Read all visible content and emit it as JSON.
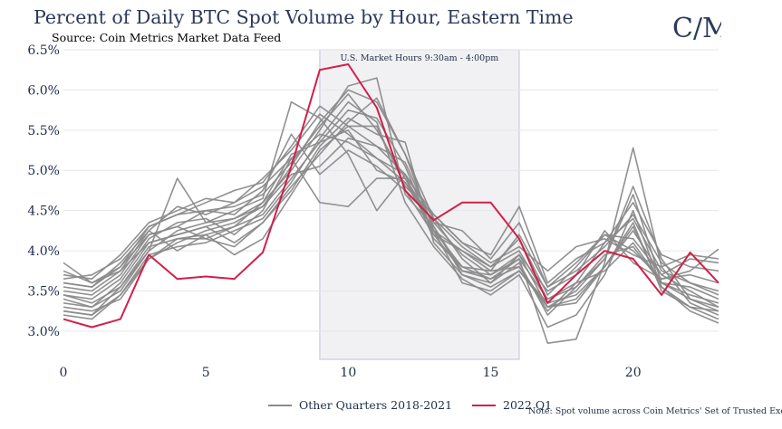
{
  "title": "Percent of Daily BTC Spot Volume by Hour, Eastern Time",
  "subtitle": "Source: Coin Metrics Market Data Feed",
  "logo_text": "C/M",
  "note": "Note: Spot volume across Coin Metrics' Set of Trusted Exchanges.",
  "colors": {
    "other": "#8a8a8a",
    "highlight": "#d21f4a",
    "shade": "#f1f1f3",
    "shade_border": "#c9cbdd",
    "axis_text": "#1f2d4a"
  },
  "chart_data": {
    "type": "line",
    "title": "Percent of Daily BTC Spot Volume by Hour, Eastern Time",
    "xlabel": "",
    "ylabel": "",
    "xlim": [
      0,
      23
    ],
    "ylim": [
      2.65,
      6.5
    ],
    "x_ticks": [
      0,
      5,
      10,
      15,
      20
    ],
    "x_tick_labels": [
      "0",
      "5",
      "10",
      "15",
      "20"
    ],
    "y_ticks": [
      3.0,
      3.5,
      4.0,
      4.5,
      5.0,
      5.5,
      6.0,
      6.5
    ],
    "y_tick_labels": [
      "3.0%",
      "3.5%",
      "4.0%",
      "4.5%",
      "5.0%",
      "5.5%",
      "6.0%",
      "6.5%"
    ],
    "grid": "horizontal",
    "legend": "bottom",
    "legend_entries": [
      "Other Quarters 2018-2021",
      "2022 Q1"
    ],
    "annotation": {
      "text": "U.S. Market Hours 9:30am - 4:00pm",
      "x_start": 9,
      "x_end": 16
    },
    "x": [
      0,
      1,
      2,
      3,
      4,
      5,
      6,
      7,
      8,
      9,
      10,
      11,
      12,
      13,
      14,
      15,
      16,
      17,
      18,
      19,
      20,
      21,
      22,
      23
    ],
    "series": [
      {
        "name": "2022 Q1",
        "values": [
          3.15,
          3.05,
          3.15,
          3.95,
          3.65,
          3.68,
          3.65,
          3.98,
          5.05,
          6.25,
          6.32,
          5.78,
          4.75,
          4.38,
          4.6,
          4.6,
          4.15,
          3.35,
          3.7,
          4.0,
          3.9,
          3.45,
          3.98,
          3.6
        ]
      },
      {
        "name": "Other Quarters 2018-2021",
        "values": [
          3.85,
          3.6,
          3.75,
          4.1,
          4.2,
          4.3,
          4.1,
          4.35,
          4.8,
          5.2,
          5.6,
          5.9,
          5.2,
          4.4,
          3.9,
          3.6,
          3.95,
          3.3,
          3.4,
          3.8,
          4.25,
          3.7,
          3.5,
          3.3
        ]
      },
      {
        "name": "Other Quarters 2018-2021",
        "values": [
          3.6,
          3.55,
          3.8,
          4.2,
          4.3,
          4.5,
          4.55,
          4.7,
          5.1,
          5.55,
          5.95,
          5.5,
          4.9,
          4.25,
          3.8,
          3.75,
          3.8,
          3.25,
          3.6,
          3.75,
          4.1,
          3.6,
          3.45,
          3.35
        ]
      },
      {
        "name": "Other Quarters 2018-2021",
        "values": [
          3.4,
          3.3,
          3.5,
          4.0,
          4.25,
          4.35,
          4.4,
          4.6,
          5.0,
          5.5,
          6.05,
          6.15,
          4.7,
          4.3,
          3.7,
          3.6,
          3.85,
          3.2,
          3.55,
          3.9,
          4.8,
          3.9,
          3.4,
          3.25
        ]
      },
      {
        "name": "Other Quarters 2018-2021",
        "values": [
          3.65,
          3.7,
          3.9,
          4.3,
          4.45,
          4.6,
          4.75,
          4.85,
          5.3,
          5.8,
          5.55,
          5.3,
          4.95,
          4.4,
          4.05,
          3.8,
          4.15,
          3.45,
          3.8,
          4.2,
          4.0,
          3.65,
          3.7,
          3.6
        ]
      },
      {
        "name": "Other Quarters 2018-2021",
        "values": [
          3.25,
          3.2,
          3.55,
          4.05,
          4.15,
          4.2,
          4.3,
          4.45,
          4.9,
          5.35,
          5.75,
          5.65,
          5.05,
          4.2,
          3.75,
          3.7,
          3.9,
          2.85,
          2.9,
          3.85,
          5.28,
          3.8,
          3.35,
          3.2
        ]
      },
      {
        "name": "Other Quarters 2018-2021",
        "values": [
          3.45,
          3.4,
          3.65,
          4.15,
          4.35,
          4.4,
          4.2,
          4.5,
          5.15,
          5.45,
          5.35,
          5.15,
          4.85,
          4.35,
          4.25,
          3.9,
          4.35,
          3.55,
          3.75,
          4.05,
          4.45,
          3.85,
          3.6,
          3.45
        ]
      },
      {
        "name": "Other Quarters 2018-2021",
        "values": [
          3.55,
          3.5,
          3.75,
          4.25,
          4.0,
          4.2,
          3.95,
          4.15,
          4.7,
          5.25,
          5.55,
          5.55,
          4.8,
          4.45,
          4.1,
          3.95,
          4.55,
          3.6,
          3.9,
          4.1,
          4.6,
          3.95,
          3.8,
          3.75
        ]
      },
      {
        "name": "Other Quarters 2018-2021",
        "values": [
          3.3,
          3.25,
          3.4,
          3.9,
          4.1,
          4.25,
          4.35,
          4.55,
          5.05,
          5.6,
          6.0,
          5.85,
          5.2,
          4.25,
          3.6,
          3.5,
          3.75,
          3.3,
          3.35,
          3.8,
          4.3,
          3.55,
          3.3,
          3.15
        ]
      },
      {
        "name": "Other Quarters 2018-2021",
        "values": [
          3.7,
          3.65,
          3.95,
          4.35,
          4.5,
          4.65,
          4.6,
          4.9,
          5.25,
          5.7,
          5.45,
          5.15,
          4.95,
          4.45,
          4.1,
          3.85,
          4.05,
          3.75,
          4.05,
          4.15,
          3.95,
          3.8,
          3.95,
          3.9
        ]
      },
      {
        "name": "Other Quarters 2018-2021",
        "values": [
          3.2,
          3.15,
          3.45,
          3.95,
          4.05,
          4.1,
          4.25,
          4.4,
          4.85,
          5.4,
          5.85,
          5.6,
          4.6,
          4.05,
          3.65,
          3.45,
          3.7,
          3.05,
          3.2,
          3.7,
          4.5,
          3.55,
          3.25,
          3.1
        ]
      },
      {
        "name": "Other Quarters 2018-2021",
        "values": [
          3.5,
          3.45,
          3.7,
          4.2,
          4.3,
          4.15,
          4.3,
          4.6,
          5.2,
          5.35,
          5.5,
          5.0,
          4.85,
          4.25,
          4.0,
          3.8,
          4.0,
          3.4,
          3.6,
          4.1,
          4.4,
          3.75,
          3.6,
          3.5
        ]
      },
      {
        "name": "Other Quarters 2018-2021",
        "values": [
          3.75,
          3.6,
          3.8,
          4.3,
          4.45,
          4.5,
          4.45,
          4.75,
          5.45,
          4.95,
          5.25,
          5.05,
          4.75,
          4.2,
          4.0,
          3.75,
          4.2,
          3.55,
          3.85,
          4.2,
          4.15,
          3.7,
          3.9,
          3.85
        ]
      },
      {
        "name": "Other Quarters 2018-2021",
        "values": [
          3.35,
          3.3,
          3.6,
          4.1,
          4.2,
          4.3,
          4.4,
          4.55,
          4.95,
          5.05,
          5.4,
          5.3,
          5.1,
          4.3,
          3.75,
          3.65,
          3.8,
          3.3,
          3.5,
          3.9,
          4.7,
          3.6,
          3.4,
          3.3
        ]
      },
      {
        "name": "Other Quarters 2018-2021",
        "values": [
          3.6,
          3.55,
          3.85,
          4.25,
          4.55,
          4.45,
          4.6,
          4.8,
          5.15,
          4.6,
          4.55,
          4.9,
          4.9,
          4.35,
          3.95,
          3.7,
          3.95,
          3.5,
          3.7,
          4.25,
          3.85,
          3.65,
          3.75,
          4.02
        ]
      },
      {
        "name": "Other Quarters 2018-2021",
        "values": [
          3.45,
          3.35,
          3.55,
          4.0,
          4.9,
          4.35,
          4.5,
          4.65,
          5.85,
          5.65,
          5.2,
          4.5,
          4.95,
          4.15,
          3.8,
          3.65,
          3.9,
          3.4,
          3.55,
          3.95,
          4.05,
          3.6,
          3.55,
          3.4
        ]
      },
      {
        "name": "Other Quarters 2018-2021",
        "values": [
          3.25,
          3.2,
          3.45,
          3.9,
          4.15,
          4.15,
          4.05,
          4.35,
          4.75,
          5.3,
          5.65,
          5.45,
          5.35,
          4.1,
          3.7,
          3.55,
          3.75,
          3.35,
          3.45,
          3.8,
          4.35,
          3.5,
          3.3,
          3.25
        ]
      }
    ]
  }
}
